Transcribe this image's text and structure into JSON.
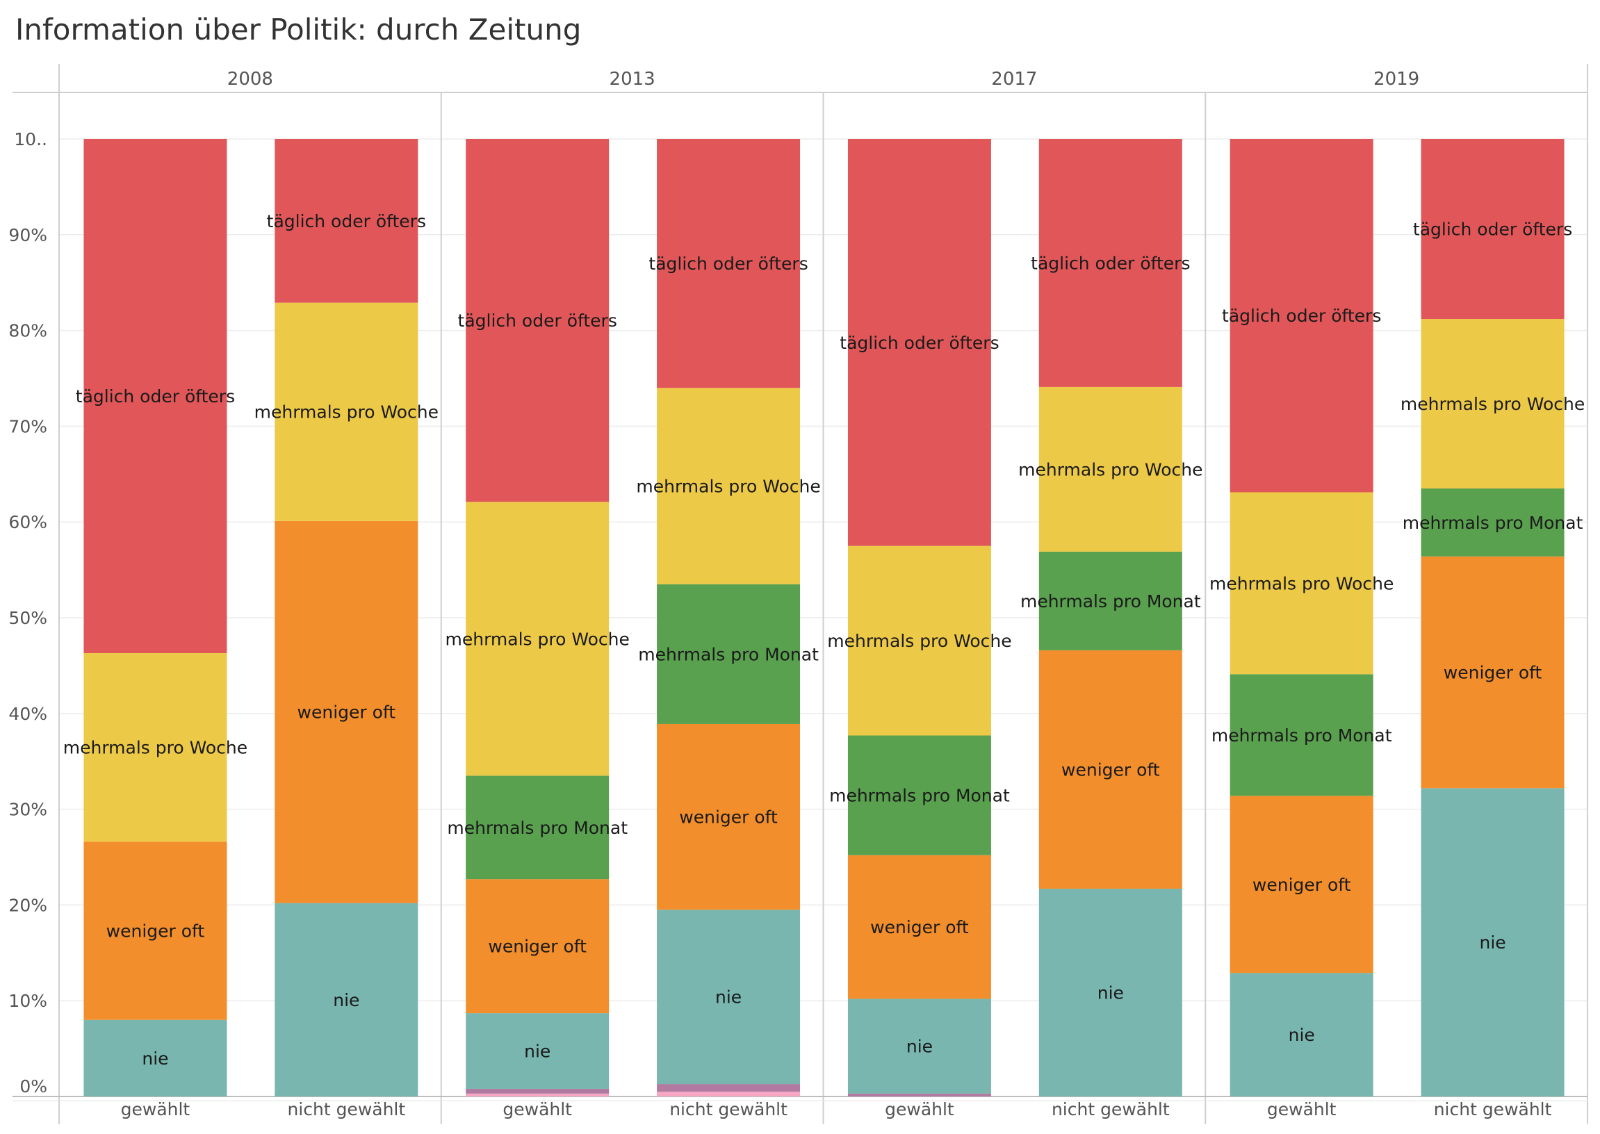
{
  "chart_data": {
    "type": "bar",
    "stacked": true,
    "normalized": true,
    "title": "Information über Politik: durch Zeitung",
    "columns": [
      "2008",
      "2013",
      "2017",
      "2019"
    ],
    "categories": [
      "gewählt",
      "nicht gewählt"
    ],
    "ylabel": "",
    "xlabel": "",
    "ylim": [
      0,
      100
    ],
    "y_tick_labels": [
      "0%",
      "10%",
      "20%",
      "30%",
      "40%",
      "50%",
      "60%",
      "70%",
      "80%",
      "90%",
      "10.."
    ],
    "grid": true,
    "series": [
      {
        "name": "pink",
        "color": "#f7a7c3",
        "values": {
          "2008": [
            0,
            0
          ],
          "2013": [
            0.3,
            0.5
          ],
          "2017": [
            0,
            0
          ],
          "2019": [
            0,
            0
          ]
        }
      },
      {
        "name": "violet",
        "color": "#b07aa1",
        "values": {
          "2008": [
            0,
            0
          ],
          "2013": [
            0.5,
            0.8
          ],
          "2017": [
            0.3,
            0
          ],
          "2019": [
            0,
            0
          ]
        }
      },
      {
        "name": "nie",
        "color": "#79b6b0",
        "values": {
          "2008": [
            8.0,
            20.2
          ],
          "2013": [
            7.9,
            18.2
          ],
          "2017": [
            9.9,
            21.7
          ],
          "2019": [
            12.9,
            32.2
          ]
        }
      },
      {
        "name": "weniger oft",
        "color": "#f28e2c",
        "values": {
          "2008": [
            18.6,
            39.9
          ],
          "2013": [
            14.0,
            19.4
          ],
          "2017": [
            15.0,
            24.9
          ],
          "2019": [
            18.5,
            24.2
          ]
        }
      },
      {
        "name": "mehrmals pro Monat",
        "color": "#59a14f",
        "values": {
          "2008": [
            0,
            0
          ],
          "2013": [
            10.8,
            14.6
          ],
          "2017": [
            12.5,
            10.3
          ],
          "2019": [
            12.7,
            7.1
          ]
        }
      },
      {
        "name": "mehrmals pro Woche",
        "color": "#edc948",
        "values": {
          "2008": [
            19.7,
            22.8
          ],
          "2013": [
            28.6,
            20.5
          ],
          "2017": [
            19.8,
            17.2
          ],
          "2019": [
            19.0,
            17.7
          ]
        }
      },
      {
        "name": "täglich oder öfters",
        "color": "#e15759",
        "values": {
          "2008": [
            53.7,
            17.1
          ],
          "2013": [
            37.9,
            26.0
          ],
          "2017": [
            42.5,
            25.9
          ],
          "2019": [
            36.9,
            18.8
          ]
        }
      }
    ],
    "labels_on": [
      "nie",
      "weniger oft",
      "mehrmals pro Monat",
      "mehrmals pro Woche",
      "täglich oder öfters"
    ]
  }
}
